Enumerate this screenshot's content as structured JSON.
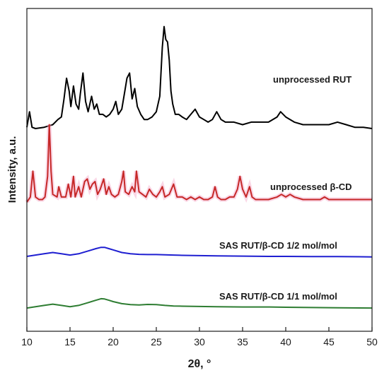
{
  "chart_data": {
    "type": "line",
    "xlabel": "2θ, °",
    "ylabel": "Intensity, a.u.",
    "xlim": [
      10,
      50
    ],
    "xticks": [
      10,
      15,
      20,
      25,
      30,
      35,
      40,
      45,
      50
    ],
    "yticks_shown": false,
    "grid": false,
    "legend": "none (series labeled inline above each trace)",
    "series": [
      {
        "name": "unprocessed RUT",
        "color": "#000000",
        "baseline": 0.79,
        "points": [
          [
            10.0,
            0.79
          ],
          [
            10.3,
            0.85
          ],
          [
            10.6,
            0.79
          ],
          [
            11,
            0.785
          ],
          [
            12,
            0.79
          ],
          [
            13,
            0.8
          ],
          [
            13.6,
            0.82
          ],
          [
            14,
            0.83
          ],
          [
            14.3,
            0.9
          ],
          [
            14.6,
            0.98
          ],
          [
            14.9,
            0.93
          ],
          [
            15.1,
            0.87
          ],
          [
            15.4,
            0.95
          ],
          [
            15.7,
            0.88
          ],
          [
            16.0,
            0.86
          ],
          [
            16.2,
            0.92
          ],
          [
            16.5,
            1.0
          ],
          [
            16.8,
            0.89
          ],
          [
            17.1,
            0.85
          ],
          [
            17.5,
            0.91
          ],
          [
            17.8,
            0.86
          ],
          [
            18.1,
            0.88
          ],
          [
            18.4,
            0.84
          ],
          [
            18.8,
            0.84
          ],
          [
            19.2,
            0.83
          ],
          [
            19.6,
            0.84
          ],
          [
            20.0,
            0.86
          ],
          [
            20.3,
            0.89
          ],
          [
            20.6,
            0.84
          ],
          [
            21.0,
            0.86
          ],
          [
            21.3,
            0.92
          ],
          [
            21.6,
            0.98
          ],
          [
            21.9,
            1.0
          ],
          [
            22.2,
            0.9
          ],
          [
            22.5,
            0.94
          ],
          [
            22.8,
            0.87
          ],
          [
            23.2,
            0.84
          ],
          [
            23.6,
            0.82
          ],
          [
            24.0,
            0.82
          ],
          [
            24.5,
            0.83
          ],
          [
            25.0,
            0.85
          ],
          [
            25.4,
            0.91
          ],
          [
            25.7,
            1.1
          ],
          [
            25.9,
            1.18
          ],
          [
            26.1,
            1.13
          ],
          [
            26.3,
            1.12
          ],
          [
            26.5,
            1.05
          ],
          [
            26.7,
            0.93
          ],
          [
            26.9,
            0.88
          ],
          [
            27.2,
            0.84
          ],
          [
            27.6,
            0.84
          ],
          [
            28.0,
            0.83
          ],
          [
            28.5,
            0.82
          ],
          [
            29.0,
            0.84
          ],
          [
            29.5,
            0.86
          ],
          [
            30.0,
            0.83
          ],
          [
            30.5,
            0.82
          ],
          [
            31.0,
            0.81
          ],
          [
            31.5,
            0.82
          ],
          [
            32.0,
            0.85
          ],
          [
            32.5,
            0.82
          ],
          [
            33.0,
            0.81
          ],
          [
            34.0,
            0.81
          ],
          [
            35.0,
            0.8
          ],
          [
            36.0,
            0.81
          ],
          [
            37.0,
            0.81
          ],
          [
            38.0,
            0.81
          ],
          [
            39.0,
            0.83
          ],
          [
            39.4,
            0.85
          ],
          [
            40.0,
            0.83
          ],
          [
            41.0,
            0.81
          ],
          [
            42.0,
            0.8
          ],
          [
            43.0,
            0.8
          ],
          [
            44.0,
            0.8
          ],
          [
            45.0,
            0.8
          ],
          [
            46.0,
            0.81
          ],
          [
            47.0,
            0.8
          ],
          [
            48.0,
            0.79
          ],
          [
            49.0,
            0.79
          ],
          [
            50.0,
            0.785
          ]
        ]
      },
      {
        "name": "unprocessed β-CD",
        "color": "#c62828",
        "baseline": 0.5,
        "points": [
          [
            10.0,
            0.5
          ],
          [
            10.4,
            0.52
          ],
          [
            10.7,
            0.62
          ],
          [
            11.0,
            0.52
          ],
          [
            11.4,
            0.51
          ],
          [
            11.8,
            0.51
          ],
          [
            12.1,
            0.52
          ],
          [
            12.4,
            0.6
          ],
          [
            12.6,
            0.8
          ],
          [
            12.8,
            0.62
          ],
          [
            13.0,
            0.53
          ],
          [
            13.5,
            0.52
          ],
          [
            13.7,
            0.56
          ],
          [
            14.0,
            0.52
          ],
          [
            14.5,
            0.52
          ],
          [
            14.8,
            0.57
          ],
          [
            15.1,
            0.52
          ],
          [
            15.4,
            0.6
          ],
          [
            15.6,
            0.52
          ],
          [
            16.0,
            0.56
          ],
          [
            16.3,
            0.52
          ],
          [
            16.7,
            0.58
          ],
          [
            17.0,
            0.59
          ],
          [
            17.3,
            0.55
          ],
          [
            17.6,
            0.57
          ],
          [
            17.9,
            0.58
          ],
          [
            18.2,
            0.53
          ],
          [
            18.5,
            0.55
          ],
          [
            18.9,
            0.59
          ],
          [
            19.2,
            0.53
          ],
          [
            19.5,
            0.56
          ],
          [
            19.8,
            0.53
          ],
          [
            20.2,
            0.52
          ],
          [
            20.6,
            0.53
          ],
          [
            21.0,
            0.58
          ],
          [
            21.2,
            0.62
          ],
          [
            21.4,
            0.54
          ],
          [
            21.8,
            0.53
          ],
          [
            22.2,
            0.56
          ],
          [
            22.5,
            0.54
          ],
          [
            22.7,
            0.62
          ],
          [
            23.0,
            0.54
          ],
          [
            23.4,
            0.53
          ],
          [
            23.8,
            0.52
          ],
          [
            24.2,
            0.55
          ],
          [
            24.6,
            0.53
          ],
          [
            25.0,
            0.52
          ],
          [
            25.4,
            0.54
          ],
          [
            25.7,
            0.56
          ],
          [
            26.0,
            0.52
          ],
          [
            26.5,
            0.53
          ],
          [
            27.0,
            0.57
          ],
          [
            27.4,
            0.52
          ],
          [
            28.0,
            0.52
          ],
          [
            28.5,
            0.51
          ],
          [
            29.0,
            0.52
          ],
          [
            29.5,
            0.51
          ],
          [
            30.0,
            0.52
          ],
          [
            30.5,
            0.51
          ],
          [
            31.0,
            0.51
          ],
          [
            31.5,
            0.52
          ],
          [
            31.8,
            0.56
          ],
          [
            32.1,
            0.52
          ],
          [
            32.5,
            0.51
          ],
          [
            33.0,
            0.51
          ],
          [
            33.5,
            0.52
          ],
          [
            34.0,
            0.52
          ],
          [
            34.4,
            0.55
          ],
          [
            34.7,
            0.6
          ],
          [
            35.0,
            0.55
          ],
          [
            35.4,
            0.52
          ],
          [
            35.8,
            0.56
          ],
          [
            36.1,
            0.52
          ],
          [
            36.5,
            0.51
          ],
          [
            37.0,
            0.51
          ],
          [
            38.0,
            0.51
          ],
          [
            39.0,
            0.52
          ],
          [
            39.5,
            0.53
          ],
          [
            40.0,
            0.52
          ],
          [
            40.5,
            0.53
          ],
          [
            41.0,
            0.52
          ],
          [
            42.0,
            0.51
          ],
          [
            43.0,
            0.51
          ],
          [
            44.0,
            0.51
          ],
          [
            44.5,
            0.52
          ],
          [
            45.0,
            0.51
          ],
          [
            46.0,
            0.51
          ],
          [
            47.0,
            0.51
          ],
          [
            48.0,
            0.51
          ],
          [
            49.0,
            0.51
          ],
          [
            50.0,
            0.51
          ]
        ]
      },
      {
        "name": "SAS RUT/β-CD 1/2 mol/mol",
        "color": "#1f1fd1",
        "baseline": 0.29,
        "points": [
          [
            10.0,
            0.29
          ],
          [
            11.0,
            0.295
          ],
          [
            12.0,
            0.3
          ],
          [
            13.0,
            0.305
          ],
          [
            14.0,
            0.3
          ],
          [
            15.0,
            0.295
          ],
          [
            16.0,
            0.3
          ],
          [
            17.0,
            0.31
          ],
          [
            18.0,
            0.32
          ],
          [
            18.6,
            0.325
          ],
          [
            19.0,
            0.325
          ],
          [
            19.5,
            0.32
          ],
          [
            20.0,
            0.315
          ],
          [
            21.0,
            0.305
          ],
          [
            22.0,
            0.3
          ],
          [
            23.0,
            0.298
          ],
          [
            24.0,
            0.297
          ],
          [
            25.0,
            0.297
          ],
          [
            26.0,
            0.296
          ],
          [
            27.0,
            0.295
          ],
          [
            28.0,
            0.294
          ],
          [
            30.0,
            0.293
          ],
          [
            32.0,
            0.292
          ],
          [
            35.0,
            0.291
          ],
          [
            38.0,
            0.29
          ],
          [
            40.0,
            0.29
          ],
          [
            43.0,
            0.289
          ],
          [
            46.0,
            0.289
          ],
          [
            50.0,
            0.288
          ]
        ]
      },
      {
        "name": "SAS RUT/β-CD 1/1 mol/mol",
        "color": "#2e7d32",
        "baseline": 0.09,
        "points": [
          [
            10.0,
            0.09
          ],
          [
            11.0,
            0.095
          ],
          [
            12.0,
            0.1
          ],
          [
            13.0,
            0.105
          ],
          [
            14.0,
            0.1
          ],
          [
            15.0,
            0.095
          ],
          [
            16.0,
            0.1
          ],
          [
            17.0,
            0.11
          ],
          [
            18.0,
            0.12
          ],
          [
            18.6,
            0.126
          ],
          [
            19.0,
            0.125
          ],
          [
            19.5,
            0.12
          ],
          [
            20.0,
            0.115
          ],
          [
            21.0,
            0.107
          ],
          [
            22.0,
            0.103
          ],
          [
            23.0,
            0.102
          ],
          [
            24.0,
            0.104
          ],
          [
            25.0,
            0.103
          ],
          [
            26.0,
            0.1
          ],
          [
            27.0,
            0.098
          ],
          [
            28.0,
            0.097
          ],
          [
            30.0,
            0.096
          ],
          [
            32.0,
            0.095
          ],
          [
            35.0,
            0.094
          ],
          [
            38.0,
            0.094
          ],
          [
            40.0,
            0.093
          ],
          [
            43.0,
            0.092
          ],
          [
            46.0,
            0.091
          ],
          [
            50.0,
            0.09
          ]
        ]
      }
    ]
  },
  "labels": {
    "rut": "unprocessed RUT",
    "bcd": "unprocessed β-CD",
    "sas12": "SAS RUT/β-CD 1/2 mol/mol",
    "sas11": "SAS RUT/β-CD 1/1 mol/mol",
    "xlabel": "2θ, °",
    "ylabel": "Intensity, a.u."
  }
}
